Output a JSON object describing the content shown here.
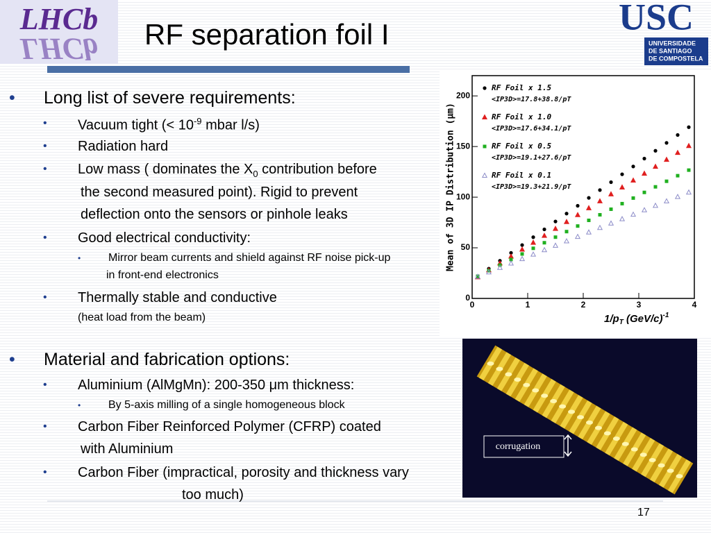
{
  "header": {
    "title": "RF separation foil I",
    "logo_left": "LHCb",
    "logo_right": "USC",
    "logo_right_sub": [
      "UNIVERSIDADE",
      "DE SANTIAGO",
      "DE COMPOSTELA"
    ]
  },
  "lines": [
    "Long list of severe requirements:",
    {
      "text": "Vacuum tight (< 10",
      "sup": "-9",
      "rest": " mbar l/s)"
    },
    "Radiation hard",
    {
      "text": "Low mass ( dominates the X",
      "sub": "0",
      "rest": " contribution before"
    },
    "the second measured point). Rigid to prevent",
    "deflection onto the sensors or pinhole leaks",
    "Good electrical conductivity:",
    "Mirror beam currents and shield against RF noise pick-up",
    "in front-end electronics",
    "Thermally stable and conductive",
    "(heat load from the beam)",
    "Material and fabrication options:",
    "Aluminium (AlMgMn): 200-350 μm thickness:",
    "By 5-axis milling of a single homogeneous block",
    "Carbon Fiber Reinforced Polymer (CFRP) coated",
    "with Aluminium",
    "Carbon Fiber (impractical, porosity and thickness vary",
    "too much)"
  ],
  "image_caption": "corrugation",
  "page_number": "17",
  "chart_data": {
    "type": "scatter",
    "ylabel": "Mean of 3D IP Distribution (μm)",
    "xlabel": "1/p",
    "xlabel_sub": "T",
    "xlabel_rest": " (GeV/c)",
    "xlabel_sup": "-1",
    "x": [
      0.1,
      0.3,
      0.5,
      0.7,
      0.9,
      1.1,
      1.3,
      1.5,
      1.7,
      1.9,
      2.1,
      2.3,
      2.5,
      2.7,
      2.9,
      3.1,
      3.3,
      3.5,
      3.7,
      3.9
    ],
    "series": [
      {
        "name": "RF Foil x 1.5",
        "formula": "<IP3D>=17.8+38.8/pT",
        "color": "#000000",
        "marker": "circle",
        "values": [
          21.7,
          29.4,
          37.2,
          45.0,
          52.7,
          60.5,
          68.2,
          76.0,
          83.8,
          91.5,
          99.3,
          107.0,
          114.8,
          122.6,
          130.3,
          138.1,
          145.8,
          153.6,
          161.4,
          169.1
        ]
      },
      {
        "name": "RF Foil x 1.0",
        "formula": "<IP3D>=17.6+34.1/pT",
        "color": "#e02020",
        "marker": "triangle",
        "values": [
          21.0,
          27.8,
          34.7,
          41.5,
          48.3,
          55.1,
          61.9,
          68.8,
          75.6,
          82.4,
          89.2,
          96.0,
          102.9,
          109.7,
          116.5,
          123.3,
          130.1,
          137.0,
          143.8,
          150.6
        ]
      },
      {
        "name": "RF Foil x 0.5",
        "formula": "<IP3D>=19.1+27.6/pT",
        "color": "#20b020",
        "marker": "square",
        "values": [
          21.9,
          27.4,
          32.9,
          38.4,
          43.9,
          49.5,
          55.0,
          60.5,
          66.0,
          71.5,
          77.1,
          82.6,
          88.1,
          93.6,
          99.1,
          104.7,
          110.2,
          115.7,
          121.2,
          126.7
        ]
      },
      {
        "name": "RF Foil x 0.1",
        "formula": "<IP3D>=19.3+21.9/pT",
        "color": "#8c8cc8",
        "marker": "triangle-open",
        "values": [
          21.5,
          25.9,
          30.3,
          34.6,
          39.0,
          43.4,
          47.8,
          52.2,
          56.5,
          60.9,
          65.3,
          69.7,
          74.1,
          78.4,
          82.8,
          87.2,
          91.6,
          96.0,
          100.3,
          104.7
        ]
      }
    ],
    "xlim": [
      0,
      4
    ],
    "xticks": [
      0,
      1,
      2,
      3,
      4
    ],
    "ylim": [
      0,
      220
    ],
    "yticks": [
      0,
      50,
      100,
      150,
      200
    ]
  }
}
